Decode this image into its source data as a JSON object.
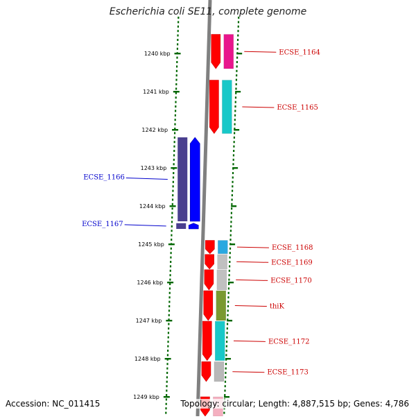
{
  "title": "Escherichia coli SE11, complete genome",
  "footer": {
    "accession": "Accession: NC_011415",
    "summary": "Topology: circular; Length: 4,887,515 bp; Genes: 4,786"
  },
  "colors": {
    "forward_label": "#cc0000",
    "reverse_label": "#0000cc",
    "tick": "#006600",
    "backbone": "#808080"
  },
  "kbp_ticks": [
    {
      "kbp": 1240,
      "label": "1240 kbp"
    },
    {
      "kbp": 1241,
      "label": "1241 kbp"
    },
    {
      "kbp": 1242,
      "label": "1242 kbp"
    },
    {
      "kbp": 1243,
      "label": "1243 kbp"
    },
    {
      "kbp": 1244,
      "label": "1244 kbp"
    },
    {
      "kbp": 1245,
      "label": "1245 kbp"
    },
    {
      "kbp": 1246,
      "label": "1246 kbp"
    },
    {
      "kbp": 1247,
      "label": "1247 kbp"
    },
    {
      "kbp": 1248,
      "label": "1248 kbp"
    },
    {
      "kbp": 1249,
      "label": "1249 kbp"
    }
  ],
  "genes": [
    {
      "label": "ECSE_1164",
      "strand": "forward",
      "start_kbp": 1239.5,
      "end_kbp": 1240.4,
      "cog_color": "#e8168c"
    },
    {
      "label": "ECSE_1165",
      "strand": "forward",
      "start_kbp": 1240.7,
      "end_kbp": 1242.1,
      "cog_color": "#18c8c8"
    },
    {
      "label": "ECSE_1166",
      "strand": "reverse",
      "start_kbp": 1242.2,
      "end_kbp": 1244.4,
      "cog_color": "#4a3f8f"
    },
    {
      "label": "ECSE_1167",
      "strand": "reverse",
      "start_kbp": 1244.45,
      "end_kbp": 1244.6,
      "cog_color": "#4a3f8f"
    },
    {
      "label": "ECSE_1168",
      "strand": "forward",
      "start_kbp": 1244.9,
      "end_kbp": 1245.25,
      "cog_color": "#2aa8e0"
    },
    {
      "label": "ECSE_1169",
      "strand": "forward",
      "start_kbp": 1245.27,
      "end_kbp": 1245.65,
      "cog_color": "#c0c0c0"
    },
    {
      "label": "ECSE_1170",
      "strand": "forward",
      "start_kbp": 1245.67,
      "end_kbp": 1246.2,
      "cog_color": "#c0c0c0"
    },
    {
      "label": "thiK",
      "strand": "forward",
      "start_kbp": 1246.22,
      "end_kbp": 1247.0,
      "cog_color": "#7a9a30"
    },
    {
      "label": "ECSE_1172",
      "strand": "forward",
      "start_kbp": 1247.02,
      "end_kbp": 1248.05,
      "cog_color": "#18c8c8"
    },
    {
      "label": "ECSE_1173",
      "strand": "forward",
      "start_kbp": 1248.08,
      "end_kbp": 1248.6,
      "cog_color": "#b8b8b8"
    },
    {
      "label": "",
      "strand": "forward",
      "start_kbp": 1249.0,
      "end_kbp": 1249.6,
      "cog_color": "#f4b0c0"
    }
  ]
}
